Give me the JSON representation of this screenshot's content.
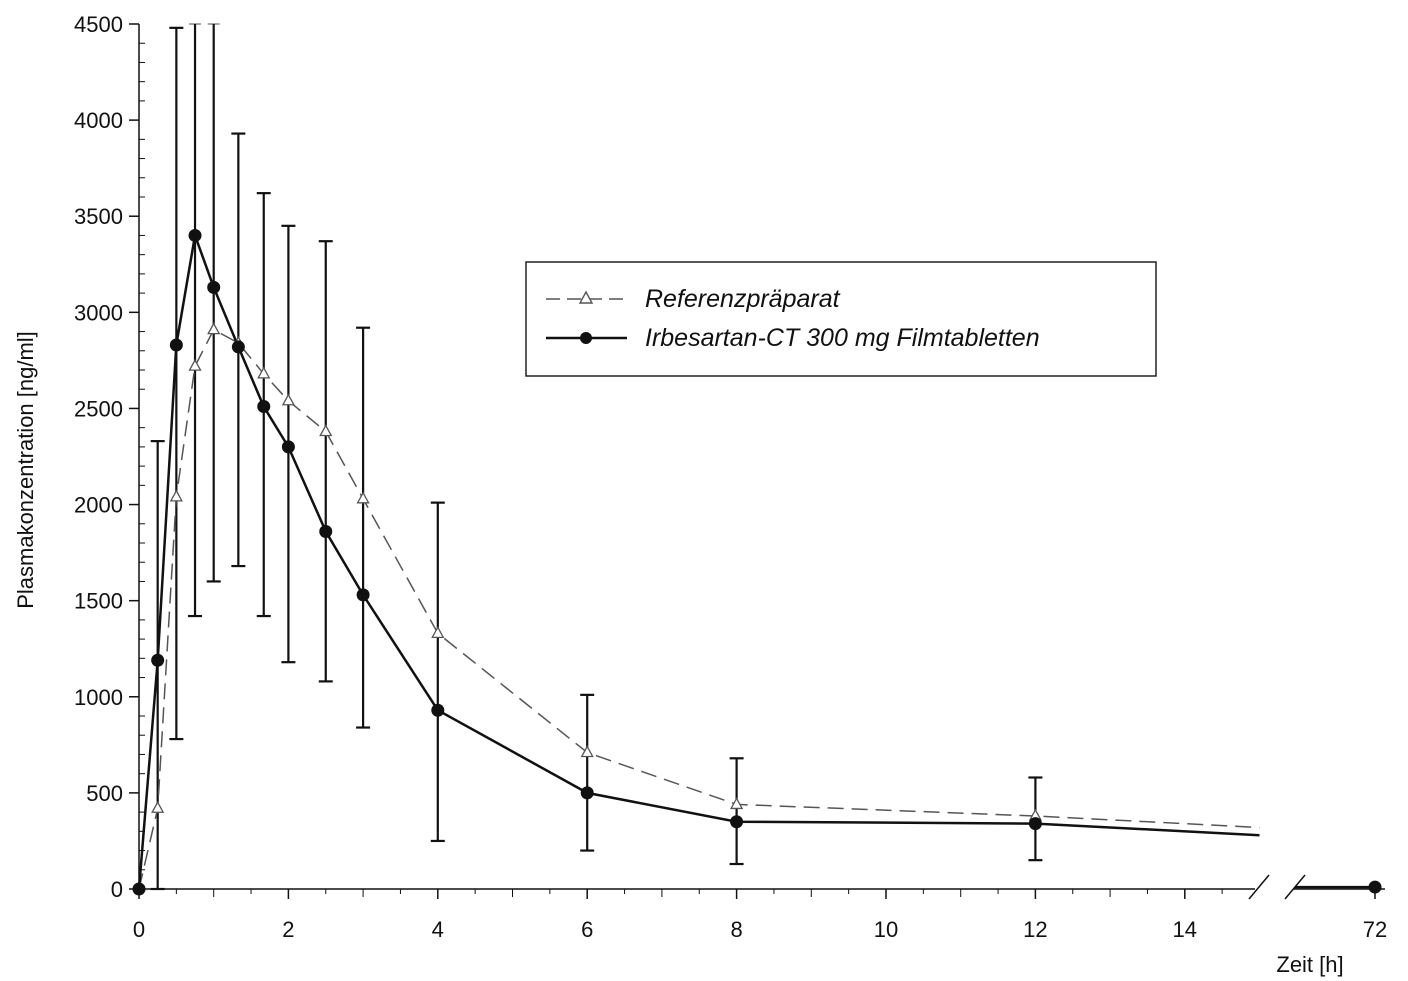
{
  "chart_data": {
    "type": "line",
    "title": "",
    "xlabel": "Zeit [h]",
    "ylabel": "Plasmakonzentration [ng/ml]",
    "ylim": [
      0,
      4500
    ],
    "yticks": [
      0,
      500,
      1000,
      1500,
      2000,
      2500,
      3000,
      3500,
      4000,
      4500
    ],
    "xlim": [
      0,
      15
    ],
    "xticks": [
      0,
      2,
      4,
      6,
      8,
      10,
      12,
      14
    ],
    "x_break": {
      "after": 15,
      "tick": 72
    },
    "grid": false,
    "legend_position": "upper-right",
    "series": [
      {
        "name": "Referenzpräparat",
        "style": "dashed",
        "marker": "open-triangle",
        "color": "#555555",
        "x": [
          0,
          0.25,
          0.5,
          0.75,
          1,
          1.33,
          1.67,
          2,
          2.5,
          3,
          4,
          6,
          8,
          12,
          15
        ],
        "y": [
          0,
          420,
          2040,
          2720,
          2910,
          2840,
          2680,
          2540,
          2380,
          2030,
          1330,
          710,
          440,
          380,
          320
        ],
        "err_upper": [
          0,
          2330,
          4480,
          4500,
          4500,
          3930,
          3620,
          3450,
          3370,
          2920,
          2010,
          1010,
          680,
          580,
          0
        ],
        "err_lower": [
          0,
          0,
          780,
          1420,
          1600,
          1680,
          1420,
          1180,
          1080,
          840,
          250,
          200,
          130,
          150,
          0
        ]
      },
      {
        "name": "Irbesartan-CT 300 mg Filmtabletten",
        "style": "solid",
        "marker": "filled-circle",
        "color": "#111111",
        "x": [
          0,
          0.25,
          0.5,
          0.75,
          1,
          1.33,
          1.67,
          2,
          2.5,
          3,
          4,
          6,
          8,
          12,
          15
        ],
        "y": [
          0,
          1190,
          2830,
          3400,
          3130,
          2820,
          2510,
          2300,
          1860,
          1530,
          930,
          500,
          350,
          340,
          280
        ],
        "err_upper": [
          0,
          2330,
          4480,
          4500,
          4500,
          3930,
          3620,
          3450,
          3370,
          2920,
          2010,
          1010,
          680,
          580,
          0
        ],
        "err_lower": [
          0,
          0,
          780,
          1420,
          1600,
          1680,
          1420,
          1180,
          1080,
          840,
          250,
          200,
          130,
          150,
          0
        ],
        "tail": {
          "x": 72,
          "y": 10
        }
      }
    ]
  }
}
